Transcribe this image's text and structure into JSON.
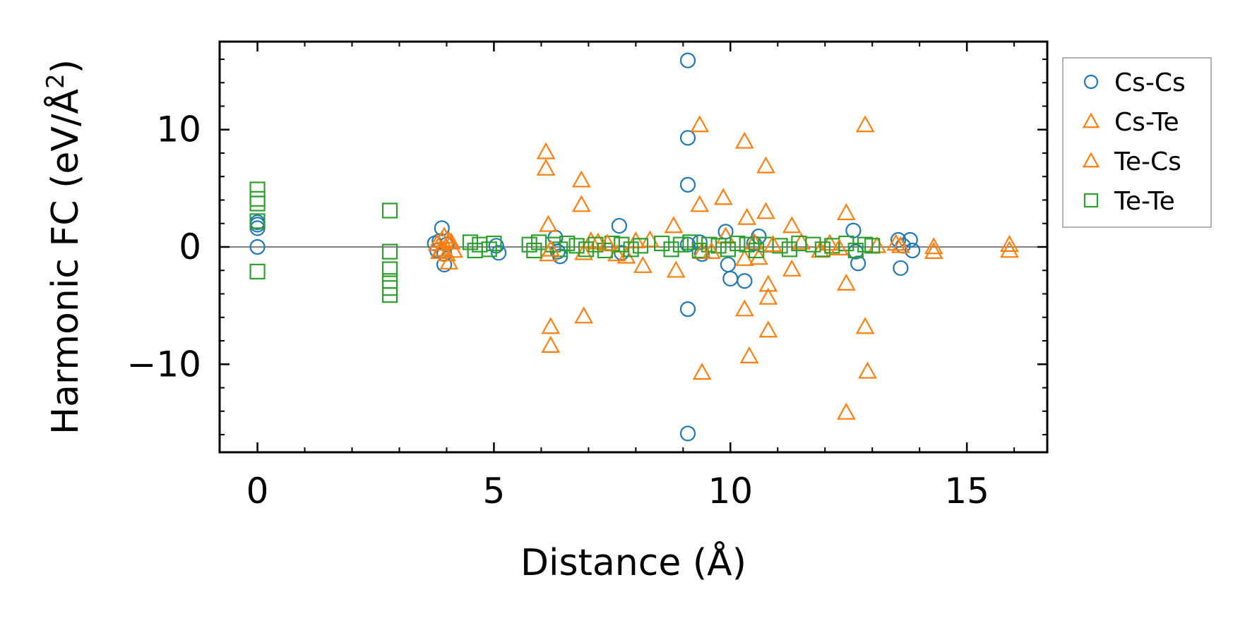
{
  "chart_data": {
    "type": "scatter",
    "title": "",
    "xlabel": "Distance (Å)",
    "ylabel_main": "Harmonic FC (eV/Å",
    "ylabel_sup": "2",
    "ylabel_close": ")",
    "xlim": [
      -0.8,
      16.7
    ],
    "ylim": [
      -17.5,
      17.5
    ],
    "xticks": [
      0,
      5,
      10,
      15
    ],
    "xtick_labels": [
      "0",
      "5",
      "10",
      "15"
    ],
    "yticks": [
      -10,
      0,
      10
    ],
    "ytick_labels": [
      "−10",
      "0",
      "10"
    ],
    "reference_line_y": 0,
    "legend_position": "outside-right",
    "series": [
      {
        "name": "Cs-Cs",
        "marker": "circle",
        "color": "#1f77b4",
        "x": [
          0,
          0,
          0,
          0,
          3.75,
          3.8,
          3.85,
          3.9,
          3.95,
          3.95,
          4.0,
          5.05,
          5.1,
          6.3,
          6.35,
          6.4,
          7.65,
          7.7,
          9.1,
          9.1,
          9.1,
          9.1,
          9.1,
          9.1,
          9.35,
          9.4,
          9.9,
          9.95,
          10.0,
          10.3,
          10.5,
          10.6,
          12.6,
          12.65,
          12.7,
          13.55,
          13.6,
          13.65,
          13.8,
          13.85
        ],
        "y": [
          0,
          1.6,
          1.9,
          2.1,
          0.3,
          -0.3,
          0.5,
          1.6,
          -0.6,
          -1.5,
          0.2,
          0.1,
          -0.5,
          0.8,
          -0.4,
          -0.8,
          1.8,
          -0.5,
          15.9,
          9.3,
          5.3,
          0.2,
          -5.3,
          -15.9,
          0.4,
          -0.6,
          1.3,
          -1.5,
          -2.7,
          -2.9,
          0.3,
          0.9,
          1.4,
          -0.4,
          -1.4,
          0.6,
          -1.8,
          0.1,
          0.6,
          -0.3
        ]
      },
      {
        "name": "Cs-Te",
        "marker": "triangle",
        "color": "#ff7f0e",
        "x": [
          3.8,
          3.85,
          3.9,
          3.95,
          4.0,
          4.05,
          4.1,
          4.15,
          6.1,
          6.1,
          6.15,
          6.15,
          6.2,
          6.2,
          6.85,
          6.85,
          6.9,
          6.9,
          7.05,
          7.2,
          7.6,
          7.8,
          8.0,
          8.15,
          8.3,
          8.8,
          8.85,
          9.35,
          9.35,
          9.4,
          9.4,
          9.85,
          9.9,
          10.3,
          10.35,
          10.3,
          10.3,
          10.4,
          10.5,
          10.6,
          10.75,
          10.75,
          10.8,
          10.8,
          10.8,
          11.3,
          11.3,
          11.5,
          11.9,
          12.1,
          12.45,
          12.45,
          12.45,
          12.85,
          12.85,
          12.9,
          13.1,
          13.5,
          14.3,
          14.3,
          15.9,
          15.9
        ],
        "y": [
          0.3,
          -0.4,
          0.6,
          0.9,
          -0.6,
          -1.3,
          0.4,
          -0.3,
          8.1,
          6.7,
          1.9,
          -0.6,
          -6.8,
          -8.4,
          5.7,
          3.6,
          -5.9,
          -0.5,
          0.5,
          0.4,
          -0.6,
          -0.8,
          0.5,
          -1.6,
          0.6,
          1.8,
          -2.0,
          10.4,
          3.6,
          -10.7,
          -0.4,
          4.2,
          0.9,
          9.0,
          2.5,
          -1.0,
          -5.3,
          -9.3,
          0.4,
          -0.9,
          6.9,
          3.0,
          -3.2,
          -4.3,
          -7.1,
          1.8,
          -1.9,
          0.4,
          -0.3,
          0.3,
          2.9,
          -3.1,
          -14.1,
          10.4,
          -6.8,
          -10.6,
          0.1,
          0.3,
          0,
          -0.4,
          0.2,
          -0.3
        ]
      },
      {
        "name": "Te-Cs",
        "marker": "triangle",
        "color": "#ff7f0e",
        "x": [
          3.9,
          4.05,
          6.2,
          7.4,
          9.6,
          10.9,
          12.3,
          13.6
        ],
        "y": [
          -0.2,
          0.5,
          -0.2,
          0.3,
          -0.4,
          0.2,
          -0.1,
          0.1
        ],
        "legend_only": true
      },
      {
        "name": "Te-Te",
        "marker": "square",
        "color": "#2ca02c",
        "x": [
          0,
          0,
          0,
          0,
          0,
          2.8,
          2.8,
          2.8,
          2.8,
          2.8,
          2.8,
          4.5,
          4.6,
          4.7,
          4.9,
          5.0,
          5.75,
          5.85,
          5.95,
          6.25,
          6.4,
          6.55,
          6.75,
          6.95,
          7.15,
          7.35,
          7.5,
          7.7,
          7.9,
          8.1,
          8.55,
          8.75,
          8.95,
          9.15,
          9.35,
          9.55,
          9.75,
          9.95,
          10.15,
          10.35,
          10.55,
          10.75,
          11.05,
          11.25,
          11.45,
          11.75,
          11.95,
          12.15,
          12.45,
          12.65,
          12.85,
          13.0
        ],
        "y": [
          4.9,
          4.1,
          3.7,
          2.2,
          -2.1,
          3.1,
          -0.4,
          -1.9,
          -2.9,
          -3.5,
          -4.1,
          0.4,
          -0.3,
          0.2,
          -0.2,
          0.3,
          0.2,
          -0.3,
          0.4,
          0.2,
          -0.2,
          0.3,
          0.1,
          -0.2,
          0.2,
          -0.3,
          0.3,
          0.2,
          -0.2,
          0.1,
          0.3,
          -0.2,
          0.2,
          0.4,
          -0.3,
          0.2,
          0.1,
          -0.2,
          0.3,
          0.2,
          -0.3,
          0.2,
          0.1,
          -0.2,
          0.3,
          0.2,
          -0.2,
          0.1,
          0.3,
          -0.3,
          0.2,
          0.1
        ]
      }
    ]
  }
}
